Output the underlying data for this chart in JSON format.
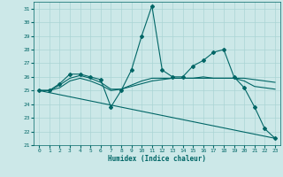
{
  "xlabel": "Humidex (Indice chaleur)",
  "bg_color": "#cce8e8",
  "line_color": "#006666",
  "grid_color": "#aad4d4",
  "xlim": [
    -0.5,
    23.5
  ],
  "ylim": [
    21,
    31.5
  ],
  "yticks": [
    21,
    22,
    23,
    24,
    25,
    26,
    27,
    28,
    29,
    30,
    31
  ],
  "xticks": [
    0,
    1,
    2,
    3,
    4,
    5,
    6,
    7,
    8,
    9,
    10,
    11,
    12,
    13,
    14,
    15,
    16,
    17,
    18,
    19,
    20,
    21,
    22,
    23
  ],
  "series": [
    {
      "x": [
        0,
        1,
        2,
        3,
        4,
        5,
        6,
        7,
        8,
        9,
        10,
        11,
        12,
        13,
        14,
        15,
        16,
        17,
        18,
        19,
        20,
        21,
        22,
        23
      ],
      "y": [
        25.0,
        25.0,
        25.5,
        26.2,
        26.2,
        26.0,
        25.8,
        23.8,
        25.0,
        26.5,
        29.0,
        31.2,
        26.5,
        26.0,
        26.0,
        26.8,
        27.2,
        27.8,
        28.0,
        26.0,
        25.2,
        23.8,
        22.2,
        21.5
      ],
      "marker": "D",
      "markersize": 2.0,
      "linewidth": 0.8
    },
    {
      "x": [
        0,
        1,
        2,
        3,
        4,
        5,
        6,
        7,
        8,
        9,
        10,
        11,
        12,
        13,
        14,
        15,
        16,
        17,
        18,
        19,
        20,
        21,
        22,
        23
      ],
      "y": [
        25.0,
        25.0,
        25.4,
        25.9,
        26.1,
        25.9,
        25.6,
        25.1,
        25.1,
        25.3,
        25.5,
        25.7,
        25.8,
        25.9,
        25.9,
        25.9,
        25.9,
        25.9,
        25.9,
        25.9,
        25.9,
        25.8,
        25.7,
        25.6
      ],
      "marker": null,
      "markersize": 0,
      "linewidth": 0.8
    },
    {
      "x": [
        0,
        1,
        2,
        3,
        4,
        5,
        6,
        7,
        8,
        9,
        10,
        11,
        12,
        13,
        14,
        15,
        16,
        17,
        18,
        19,
        20,
        21,
        22,
        23
      ],
      "y": [
        25.0,
        25.0,
        25.2,
        25.7,
        25.9,
        25.7,
        25.4,
        25.0,
        25.1,
        25.4,
        25.7,
        25.9,
        25.9,
        25.9,
        25.9,
        25.9,
        26.0,
        25.9,
        25.9,
        25.9,
        25.7,
        25.3,
        25.2,
        25.1
      ],
      "marker": null,
      "markersize": 0,
      "linewidth": 0.8
    },
    {
      "x": [
        0,
        23
      ],
      "y": [
        25.0,
        21.5
      ],
      "marker": null,
      "markersize": 0,
      "linewidth": 0.8
    }
  ]
}
